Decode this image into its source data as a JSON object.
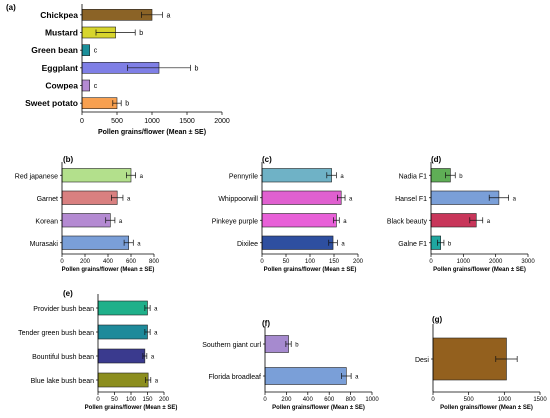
{
  "chart_data": [
    {
      "type": "bar",
      "orientation": "horizontal",
      "panel_label": "(a)",
      "categories": [
        "Chickpea",
        "Mustard",
        "Green bean",
        "Eggplant",
        "Cowpea",
        "Sweet potato"
      ],
      "values": [
        1000,
        480,
        110,
        1100,
        110,
        500
      ],
      "errors": [
        150,
        280,
        0,
        450,
        0,
        60
      ],
      "significance": [
        "a",
        "b",
        "c",
        "b",
        "c",
        "b"
      ],
      "colors": [
        "#8B6326",
        "#D7D52D",
        "#1A8F9A",
        "#7F7FE6",
        "#B48AD2",
        "#F8A050"
      ],
      "xlim": [
        0,
        2000
      ],
      "xticks": [
        0,
        500,
        1000,
        1500,
        2000
      ],
      "xlabel": "Pollen grains/flower (Mean ± SE)"
    },
    {
      "type": "bar",
      "orientation": "horizontal",
      "panel_label": "(b)",
      "categories": [
        "Red japanese",
        "Garnet",
        "Korean",
        "Murasaki"
      ],
      "values": [
        600,
        480,
        420,
        580
      ],
      "errors": [
        40,
        50,
        40,
        40
      ],
      "significance": [
        "a",
        "a",
        "a",
        "a"
      ],
      "colors": [
        "#B3E08C",
        "#D98080",
        "#B48AD2",
        "#7A9FD8"
      ],
      "xlim": [
        0,
        800
      ],
      "xticks": [
        0,
        200,
        400,
        600,
        800
      ],
      "xlabel": "Pollen grains/flower (Mean ± SE)"
    },
    {
      "type": "bar",
      "orientation": "horizontal",
      "panel_label": "(c)",
      "categories": [
        "Pennyrile",
        "Whippoorwill",
        "Pinkeye purple",
        "Dixilee"
      ],
      "values": [
        145,
        165,
        155,
        148
      ],
      "errors": [
        10,
        8,
        6,
        9
      ],
      "significance": [
        "a",
        "a",
        "a",
        "a"
      ],
      "colors": [
        "#6FB2C6",
        "#E060D0",
        "#E860D8",
        "#2E4FA0"
      ],
      "xlim": [
        0,
        200
      ],
      "xticks": [
        0,
        50,
        100,
        150,
        200
      ],
      "xlabel": "Pollen grains/flower (Mean ± SE)"
    },
    {
      "type": "bar",
      "orientation": "horizontal",
      "panel_label": "(d)",
      "categories": [
        "Nadia F1",
        "Hansel F1",
        "Black beauty",
        "Galne F1"
      ],
      "values": [
        600,
        2100,
        1400,
        300
      ],
      "errors": [
        150,
        300,
        200,
        100
      ],
      "significance": [
        "b",
        "a",
        "a",
        "b"
      ],
      "colors": [
        "#5FAE56",
        "#7A9FD8",
        "#C8365A",
        "#1FA7A0"
      ],
      "xlim": [
        0,
        3000
      ],
      "xticks": [
        0,
        1000,
        2000,
        3000
      ],
      "xlabel": "Pollen grains/flower (Mean ± SE)"
    },
    {
      "type": "bar",
      "orientation": "horizontal",
      "panel_label": "(e)",
      "categories": [
        "Provider bush bean",
        "Tender green bush bean",
        "Bountiful bush bean",
        "Blue lake bush bean"
      ],
      "values": [
        150,
        150,
        142,
        152
      ],
      "errors": [
        8,
        8,
        6,
        8
      ],
      "significance": [
        "a",
        "a",
        "a",
        "a"
      ],
      "colors": [
        "#1FB08A",
        "#1E8A9A",
        "#3A3A8E",
        "#8C8E1E"
      ],
      "xlim": [
        0,
        200
      ],
      "xticks": [
        0,
        50,
        100,
        150,
        200
      ],
      "xlabel": "Pollen grains/flower (Mean ± SE)"
    },
    {
      "type": "bar",
      "orientation": "horizontal",
      "panel_label": "(f)",
      "categories": [
        "Southern giant curl",
        "Florida broadleaf"
      ],
      "values": [
        220,
        760
      ],
      "errors": [
        25,
        45
      ],
      "significance": [
        "b",
        "a"
      ],
      "colors": [
        "#A68ACF",
        "#7A9FD8"
      ],
      "xlim": [
        0,
        1000
      ],
      "xticks": [
        0,
        200,
        400,
        600,
        800,
        1000
      ],
      "xlabel": "Pollen grains/flower (Mean ± SE)"
    },
    {
      "type": "bar",
      "orientation": "horizontal",
      "panel_label": "(g)",
      "categories": [
        "Desi"
      ],
      "values": [
        1030
      ],
      "errors": [
        150
      ],
      "significance": [
        ""
      ],
      "colors": [
        "#93601E"
      ],
      "xlim": [
        0,
        1500
      ],
      "xticks": [
        0,
        500,
        1000,
        1500
      ],
      "xlabel": "Pollen grains/flower (Mean ± SE)"
    }
  ]
}
